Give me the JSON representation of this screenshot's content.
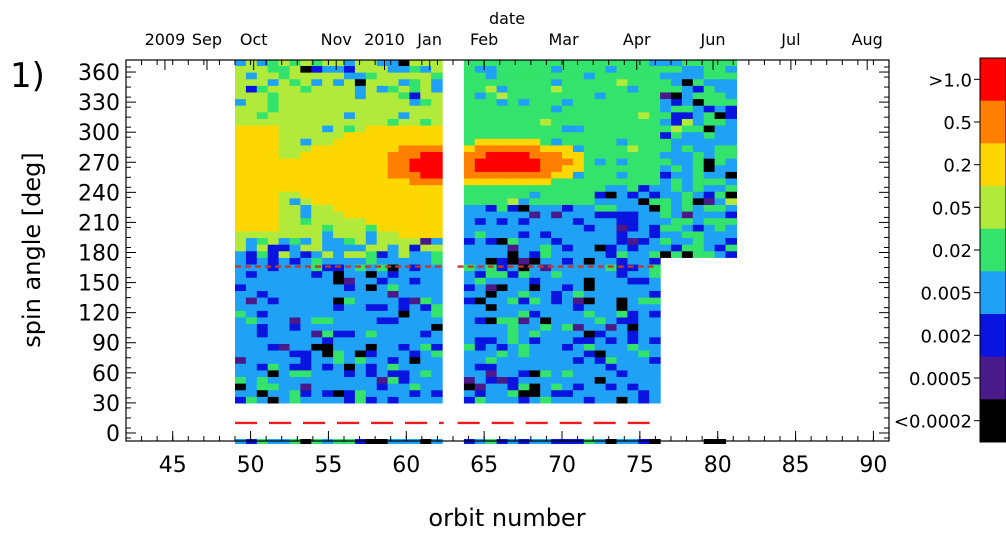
{
  "panel_label": "1)",
  "chart_data": {
    "type": "heatmap",
    "title": "",
    "xlabel": "orbit number",
    "ylabel": "spin angle [deg]",
    "top_axis_label": "date",
    "xlim": [
      42,
      91
    ],
    "ylim": [
      -8,
      372
    ],
    "x_ticks": [
      45,
      50,
      55,
      60,
      65,
      70,
      75,
      80,
      85,
      90
    ],
    "x_tick_labels": [
      "45",
      "50",
      "55",
      "60",
      "65",
      "70",
      "75",
      "80",
      "85",
      "90"
    ],
    "y_ticks": [
      0,
      30,
      60,
      90,
      120,
      150,
      180,
      210,
      240,
      270,
      300,
      330,
      360
    ],
    "y_tick_labels": [
      "0",
      "30",
      "60",
      "90",
      "120",
      "150",
      "180",
      "210",
      "240",
      "270",
      "300",
      "330",
      "360"
    ],
    "top_ticks": [
      {
        "label": "2009",
        "orbit": 44.5
      },
      {
        "label": "Sep",
        "orbit": 47.2
      },
      {
        "label": "Oct",
        "orbit": 50.2
      },
      {
        "label": "Nov",
        "orbit": 55.5
      },
      {
        "label": "2010",
        "orbit": 58.6
      },
      {
        "label": "Jan",
        "orbit": 61.5
      },
      {
        "label": "Feb",
        "orbit": 65.0
      },
      {
        "label": "Mar",
        "orbit": 70.1
      },
      {
        "label": "Apr",
        "orbit": 74.8
      },
      {
        "label": "Jun",
        "orbit": 79.7
      },
      {
        "label": "Jul",
        "orbit": 84.7
      },
      {
        "label": "Aug",
        "orbit": 89.6
      }
    ],
    "colorbar": {
      "labels": [
        ">1.0",
        "0.5",
        "0.2",
        "0.05",
        "0.02",
        "0.005",
        "0.002",
        "0.0005",
        "<0.0002"
      ],
      "colors": [
        "#ff0000",
        "#ff7f00",
        "#ffd700",
        "#b2ea3c",
        "#33e36b",
        "#1fa2f5",
        "#0a14e0",
        "#4a1a8a",
        "#000000"
      ]
    },
    "reference_lines": [
      {
        "y": 10,
        "color": "#ee1c1c",
        "style": "long-dash"
      },
      {
        "y": 166,
        "color": "#c0392b",
        "style": "dash"
      }
    ],
    "data_gap_orbits": [
      62.4,
      63.3
    ]
  }
}
